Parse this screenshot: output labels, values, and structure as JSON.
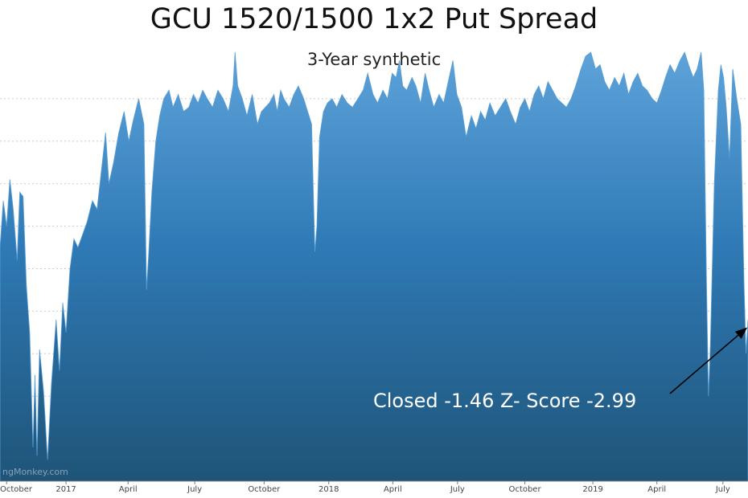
{
  "chart_data": {
    "type": "area",
    "title": "GCU 1520/1500 1x2 Put Spread",
    "subtitle": "3-Year synthetic",
    "xlabel": "",
    "ylabel": "",
    "x_tick_labels": [
      "October",
      "2017",
      "April",
      "July",
      "October",
      "2018",
      "April",
      "July",
      "October",
      "2019",
      "April",
      "July"
    ],
    "x_tick_positions": [
      0.1,
      1.0,
      1.94,
      2.95,
      4.0,
      4.98,
      5.95,
      6.93,
      7.95,
      8.98,
      9.95,
      10.95
    ],
    "x_range": [
      0,
      11.33
    ],
    "y_range": [
      0,
      100
    ],
    "grid": "horizontal dotted",
    "color": "#2f7ab6",
    "series": [
      {
        "values": [
          [
            0.0,
            55
          ],
          [
            0.05,
            66
          ],
          [
            0.1,
            60
          ],
          [
            0.15,
            71
          ],
          [
            0.2,
            64
          ],
          [
            0.26,
            52
          ],
          [
            0.3,
            68
          ],
          [
            0.35,
            67
          ],
          [
            0.4,
            46
          ],
          [
            0.45,
            35
          ],
          [
            0.5,
            8
          ],
          [
            0.53,
            25
          ],
          [
            0.56,
            6
          ],
          [
            0.6,
            31
          ],
          [
            0.66,
            21
          ],
          [
            0.72,
            5
          ],
          [
            0.78,
            23
          ],
          [
            0.85,
            38
          ],
          [
            0.9,
            26
          ],
          [
            0.95,
            42
          ],
          [
            1.0,
            35
          ],
          [
            1.06,
            50
          ],
          [
            1.12,
            57
          ],
          [
            1.18,
            55
          ],
          [
            1.25,
            58
          ],
          [
            1.32,
            61
          ],
          [
            1.4,
            66
          ],
          [
            1.47,
            64
          ],
          [
            1.55,
            75
          ],
          [
            1.6,
            82
          ],
          [
            1.65,
            70
          ],
          [
            1.72,
            75
          ],
          [
            1.8,
            82
          ],
          [
            1.88,
            87
          ],
          [
            1.95,
            80
          ],
          [
            2.02,
            85
          ],
          [
            2.1,
            90
          ],
          [
            2.18,
            84
          ],
          [
            2.22,
            45
          ],
          [
            2.25,
            53
          ],
          [
            2.3,
            68
          ],
          [
            2.36,
            80
          ],
          [
            2.42,
            86
          ],
          [
            2.48,
            90
          ],
          [
            2.56,
            92
          ],
          [
            2.62,
            88
          ],
          [
            2.7,
            91
          ],
          [
            2.78,
            87
          ],
          [
            2.86,
            88
          ],
          [
            2.93,
            91
          ],
          [
            3.0,
            89
          ],
          [
            3.07,
            92
          ],
          [
            3.14,
            90
          ],
          [
            3.22,
            88
          ],
          [
            3.3,
            92
          ],
          [
            3.38,
            90
          ],
          [
            3.46,
            87
          ],
          [
            3.53,
            93
          ],
          [
            3.56,
            102
          ],
          [
            3.6,
            93
          ],
          [
            3.67,
            90
          ],
          [
            3.74,
            86
          ],
          [
            3.82,
            91
          ],
          [
            3.9,
            84
          ],
          [
            3.96,
            87
          ],
          [
            4.02,
            88
          ],
          [
            4.08,
            89
          ],
          [
            4.15,
            91
          ],
          [
            4.2,
            87
          ],
          [
            4.25,
            92
          ],
          [
            4.3,
            90
          ],
          [
            4.38,
            88
          ],
          [
            4.45,
            91
          ],
          [
            4.52,
            93
          ],
          [
            4.6,
            90
          ],
          [
            4.66,
            87
          ],
          [
            4.72,
            84
          ],
          [
            4.77,
            54
          ],
          [
            4.8,
            60
          ],
          [
            4.84,
            81
          ],
          [
            4.9,
            87
          ],
          [
            4.96,
            89
          ],
          [
            5.03,
            90
          ],
          [
            5.1,
            88
          ],
          [
            5.18,
            91
          ],
          [
            5.26,
            89
          ],
          [
            5.34,
            88
          ],
          [
            5.42,
            90
          ],
          [
            5.5,
            92
          ],
          [
            5.57,
            96
          ],
          [
            5.65,
            91
          ],
          [
            5.72,
            89
          ],
          [
            5.8,
            92
          ],
          [
            5.87,
            90
          ],
          [
            5.94,
            96
          ],
          [
            6.0,
            95
          ],
          [
            6.05,
            99
          ],
          [
            6.1,
            93
          ],
          [
            6.16,
            92
          ],
          [
            6.24,
            95
          ],
          [
            6.3,
            93
          ],
          [
            6.37,
            89
          ],
          [
            6.44,
            96
          ],
          [
            6.5,
            92
          ],
          [
            6.57,
            88
          ],
          [
            6.65,
            91
          ],
          [
            6.72,
            89
          ],
          [
            6.79,
            94
          ],
          [
            6.86,
            99
          ],
          [
            6.92,
            91
          ],
          [
            6.99,
            88
          ],
          [
            7.06,
            81
          ],
          [
            7.14,
            86
          ],
          [
            7.21,
            83
          ],
          [
            7.28,
            87
          ],
          [
            7.35,
            85
          ],
          [
            7.42,
            89
          ],
          [
            7.5,
            86
          ],
          [
            7.58,
            88
          ],
          [
            7.66,
            90
          ],
          [
            7.73,
            87
          ],
          [
            7.81,
            84
          ],
          [
            7.88,
            88
          ],
          [
            7.95,
            90
          ],
          [
            8.02,
            87
          ],
          [
            8.09,
            91
          ],
          [
            8.16,
            93
          ],
          [
            8.23,
            90
          ],
          [
            8.3,
            94
          ],
          [
            8.37,
            92
          ],
          [
            8.44,
            90
          ],
          [
            8.51,
            89
          ],
          [
            8.58,
            88
          ],
          [
            8.65,
            90
          ],
          [
            8.72,
            93
          ],
          [
            8.8,
            97
          ],
          [
            8.87,
            100
          ],
          [
            8.95,
            101
          ],
          [
            9.02,
            97
          ],
          [
            9.09,
            98
          ],
          [
            9.16,
            94
          ],
          [
            9.23,
            92
          ],
          [
            9.31,
            95
          ],
          [
            9.38,
            93
          ],
          [
            9.45,
            96
          ],
          [
            9.52,
            91
          ],
          [
            9.59,
            94
          ],
          [
            9.66,
            96
          ],
          [
            9.73,
            93
          ],
          [
            9.8,
            92
          ],
          [
            9.88,
            90
          ],
          [
            9.95,
            89
          ],
          [
            10.02,
            92
          ],
          [
            10.08,
            95
          ],
          [
            10.15,
            98
          ],
          [
            10.22,
            96
          ],
          [
            10.3,
            99
          ],
          [
            10.37,
            101
          ],
          [
            10.43,
            98
          ],
          [
            10.5,
            95
          ],
          [
            10.56,
            97
          ],
          [
            10.62,
            106
          ],
          [
            10.66,
            92
          ],
          [
            10.7,
            48
          ],
          [
            10.73,
            20
          ],
          [
            10.76,
            32
          ],
          [
            10.82,
            70
          ],
          [
            10.88,
            92
          ],
          [
            10.92,
            98
          ],
          [
            10.96,
            95
          ],
          [
            11.0,
            88
          ],
          [
            11.05,
            76
          ],
          [
            11.1,
            97
          ],
          [
            11.16,
            90
          ],
          [
            11.22,
            84
          ],
          [
            11.27,
            46
          ],
          [
            11.3,
            30
          ],
          [
            11.33,
            38
          ]
        ]
      }
    ],
    "annotations": [
      {
        "text": "Closed -1.46 Z- Score -2.99",
        "arrow_to": [
          11.33,
          36
        ]
      }
    ],
    "watermark": "ngMonkey.com"
  }
}
